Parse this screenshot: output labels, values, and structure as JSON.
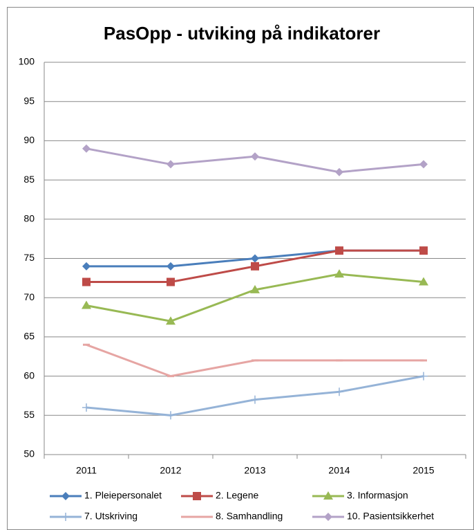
{
  "chart_data": {
    "type": "line",
    "title": "PasOpp - utviking på indikatorer",
    "categories": [
      "2011",
      "2012",
      "2013",
      "2014",
      "2015"
    ],
    "series": [
      {
        "name": "1. Pleiepersonalet",
        "color": "#4a7ebb",
        "marker": "diamond",
        "values": [
          74,
          74,
          75,
          76,
          76
        ]
      },
      {
        "name": "2. Legene",
        "color": "#be4b48",
        "marker": "square",
        "values": [
          72,
          72,
          74,
          76,
          76
        ]
      },
      {
        "name": "3. Informasjon",
        "color": "#98b954",
        "marker": "triangle",
        "values": [
          69,
          67,
          71,
          73,
          72
        ]
      },
      {
        "name": "7. Utskriving",
        "color": "#95b3d7",
        "marker": "plus",
        "values": [
          56,
          55,
          57,
          58,
          60
        ]
      },
      {
        "name": "8. Samhandling",
        "color": "#e6a5a3",
        "marker": "dash",
        "values": [
          64,
          60,
          62,
          62,
          62
        ]
      },
      {
        "name": "10. Pasientsikkerhet",
        "color": "#b3a2c7",
        "marker": "diamond",
        "values": [
          89,
          87,
          88,
          86,
          87
        ]
      }
    ],
    "ylim": [
      50,
      100
    ],
    "yticks": [
      50,
      55,
      60,
      65,
      70,
      75,
      80,
      85,
      90,
      95,
      100
    ],
    "grid": true,
    "legend": "bottom"
  }
}
